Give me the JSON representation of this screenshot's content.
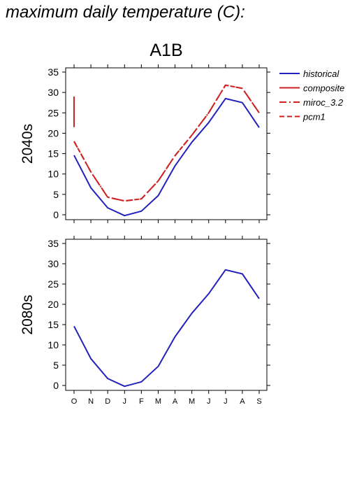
{
  "title": "maximum daily temperature (C):",
  "chart_data": {
    "type": "line",
    "scenario": "A1B",
    "categories": [
      "O",
      "N",
      "D",
      "J",
      "F",
      "M",
      "A",
      "M",
      "J",
      "J",
      "A",
      "S"
    ],
    "ylim": [
      0,
      35
    ],
    "yticks": [
      0,
      5,
      10,
      15,
      20,
      25,
      30,
      35
    ],
    "legend": {
      "placement": "right",
      "entries": [
        {
          "name": "historical",
          "color": "#2222bb",
          "style": "solid"
        },
        {
          "name": "composite",
          "color": "#cc2222",
          "style": "solid"
        },
        {
          "name": "miroc_3.2",
          "color": "#cc2222",
          "style": "dashdot"
        },
        {
          "name": "pcm1",
          "color": "#cc2222",
          "style": "dashed"
        }
      ]
    },
    "panels": [
      {
        "label": "2040s",
        "series": [
          {
            "name": "historical",
            "values": [
              14.6,
              6.6,
              1.7,
              -0.2,
              0.9,
              4.7,
              12.0,
              17.8,
              22.6,
              28.5,
              27.5,
              21.4
            ]
          },
          {
            "name": "composite",
            "x_index": [
              0,
              0
            ],
            "values": [
              21.5,
              29.0
            ]
          },
          {
            "name": "miroc_3.2",
            "values": [
              18.0,
              10.5,
              4.3,
              3.4,
              3.9,
              8.3,
              14.5,
              19.5,
              25.0,
              31.8,
              31.0,
              25.0
            ]
          },
          {
            "name": "pcm1",
            "values": [
              18.0,
              10.5,
              4.3,
              3.4,
              3.9,
              8.3,
              14.5,
              19.5,
              25.0,
              31.8,
              31.0,
              25.0
            ]
          }
        ]
      },
      {
        "label": "2080s",
        "series": [
          {
            "name": "historical",
            "values": [
              14.6,
              6.6,
              1.7,
              -0.2,
              0.9,
              4.7,
              12.0,
              17.8,
              22.6,
              28.5,
              27.5,
              21.4
            ]
          }
        ]
      }
    ]
  }
}
